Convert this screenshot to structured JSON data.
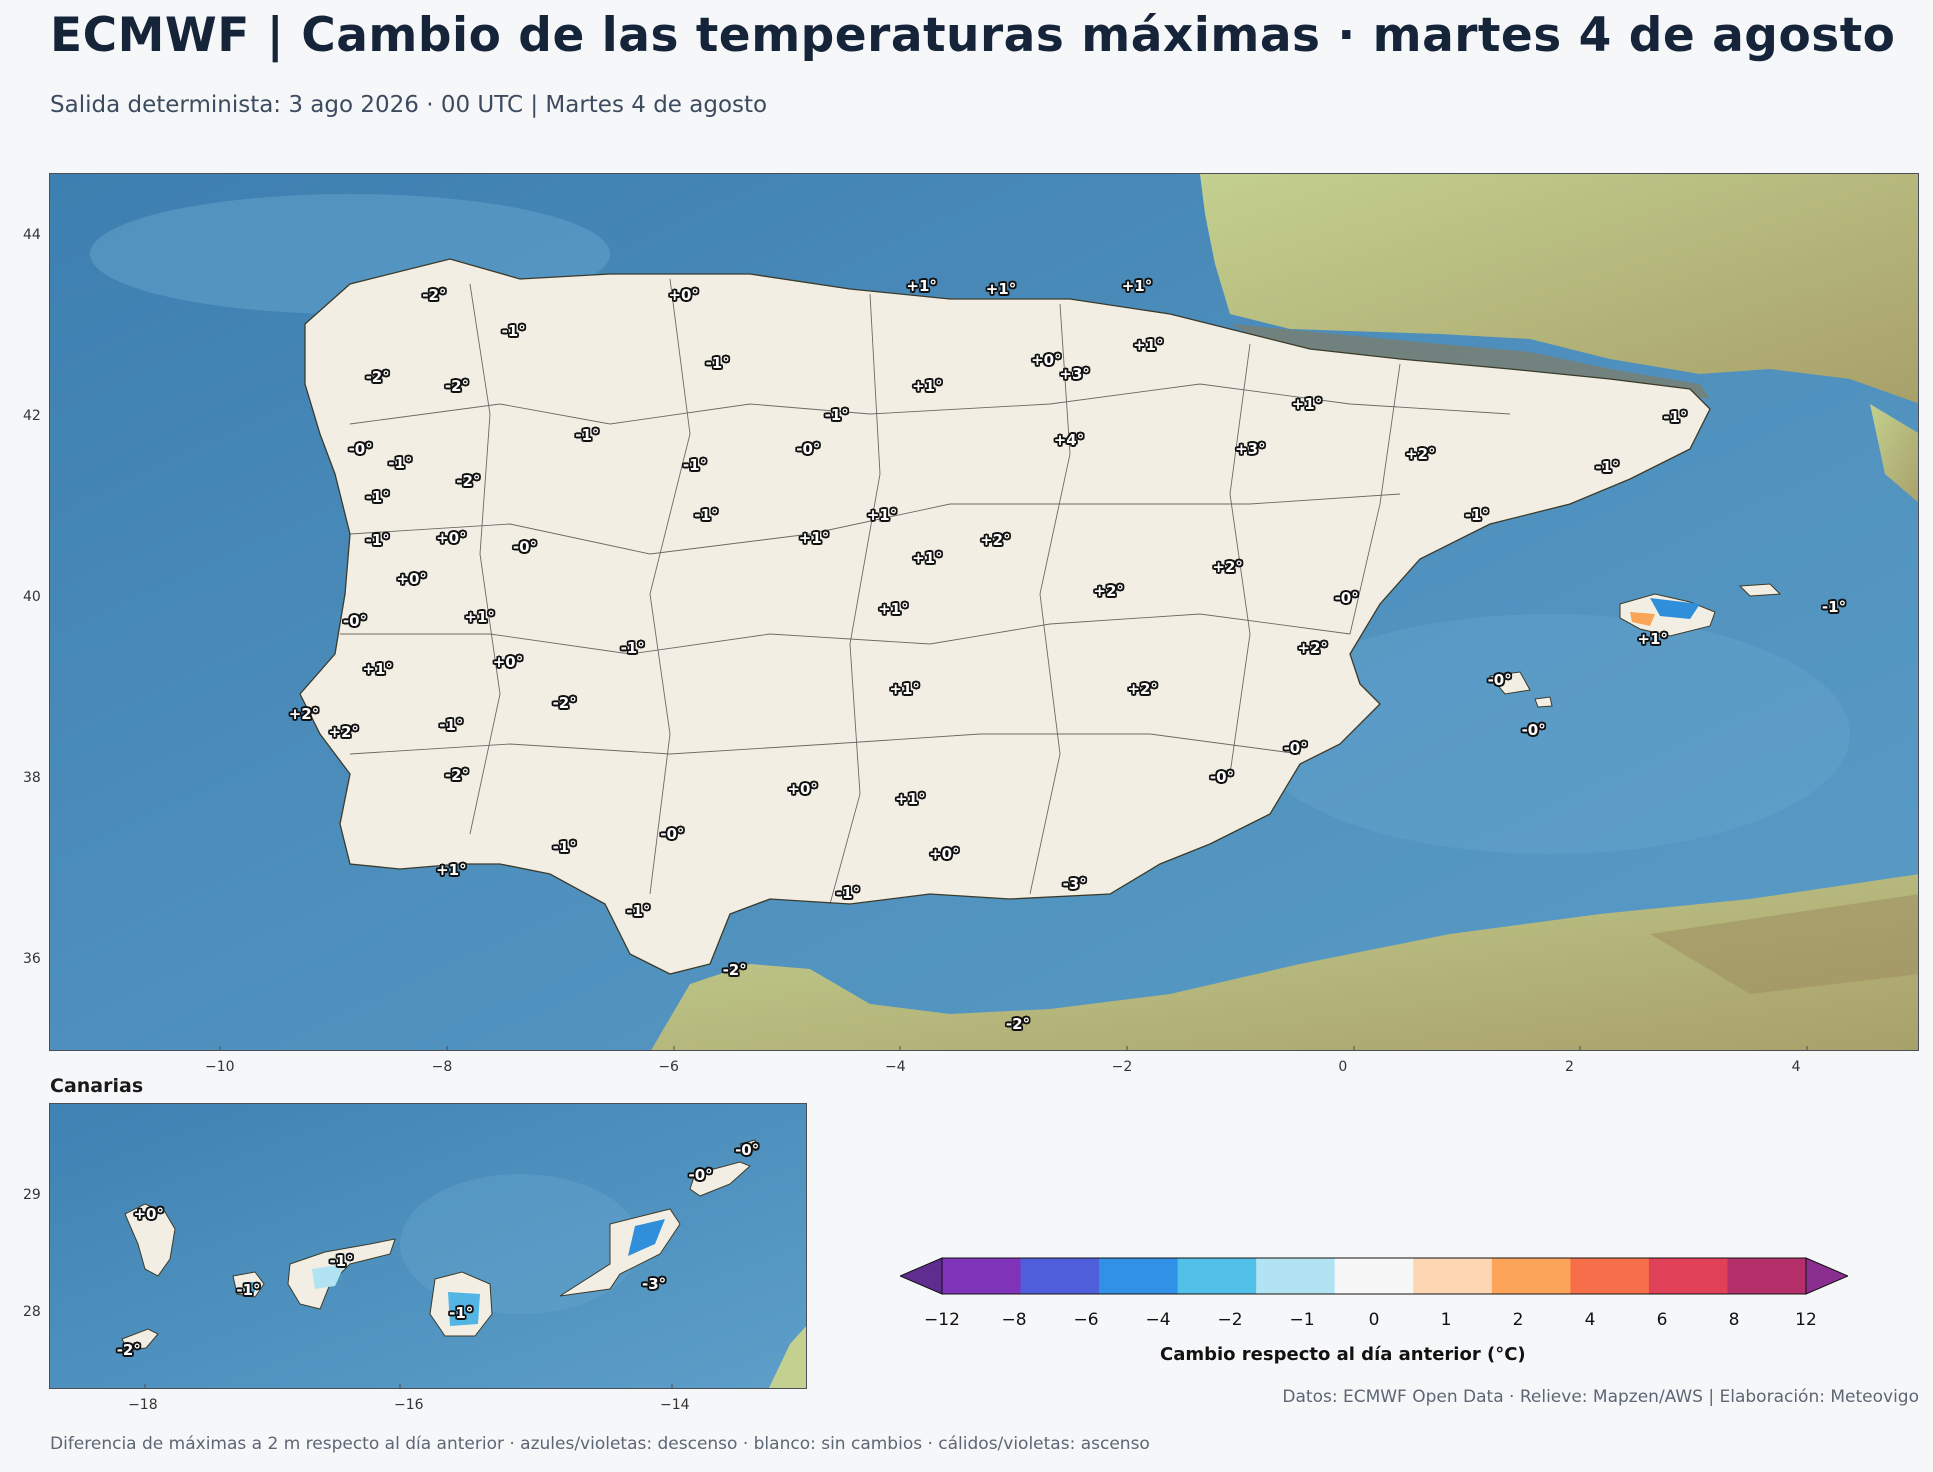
{
  "header": {
    "title": "ECMWF | Cambio de las temperaturas máximas · martes 4 de agosto",
    "subtitle": "Salida determinista: 3 ago 2026 · 00 UTC  |  Martes 4 de agosto"
  },
  "main_map": {
    "lon_range": [
      -11.5,
      5.0
    ],
    "lat_range": [
      35.0,
      44.7
    ],
    "x_ticks": [
      "−10",
      "−8",
      "−6",
      "−4",
      "−2",
      "0",
      "2",
      "4"
    ],
    "x_tick_values": [
      -10,
      -8,
      -6,
      -4,
      -2,
      0,
      2,
      4
    ],
    "y_ticks": [
      "36",
      "38",
      "40",
      "42",
      "44"
    ],
    "y_tick_values": [
      36,
      38,
      40,
      42,
      44
    ],
    "labels": [
      {
        "text": "-2°",
        "lon": -8.1,
        "lat": 43.35
      },
      {
        "text": "+0°",
        "lon": -5.9,
        "lat": 43.35
      },
      {
        "text": "+1°",
        "lon": -3.8,
        "lat": 43.45
      },
      {
        "text": "+1°",
        "lon": -3.1,
        "lat": 43.42
      },
      {
        "text": "+1°",
        "lon": -1.9,
        "lat": 43.45
      },
      {
        "text": "-1°",
        "lon": -7.4,
        "lat": 42.95
      },
      {
        "text": "-1°",
        "lon": -5.6,
        "lat": 42.6
      },
      {
        "text": "+1°",
        "lon": -1.8,
        "lat": 42.8
      },
      {
        "text": "+0°",
        "lon": -2.7,
        "lat": 42.63
      },
      {
        "text": "+3°",
        "lon": -2.45,
        "lat": 42.48
      },
      {
        "text": "-2°",
        "lon": -8.6,
        "lat": 42.45
      },
      {
        "text": "-2°",
        "lon": -7.9,
        "lat": 42.35
      },
      {
        "text": "+1°",
        "lon": -3.75,
        "lat": 42.35
      },
      {
        "text": "+1°",
        "lon": -0.4,
        "lat": 42.15
      },
      {
        "text": "-1°",
        "lon": -4.55,
        "lat": 42.03
      },
      {
        "text": "-1°",
        "lon": 2.85,
        "lat": 42.0
      },
      {
        "text": "-1°",
        "lon": -6.75,
        "lat": 41.8
      },
      {
        "text": "+4°",
        "lon": -2.5,
        "lat": 41.75
      },
      {
        "text": "-0°",
        "lon": -8.75,
        "lat": 41.65
      },
      {
        "text": "-0°",
        "lon": -4.8,
        "lat": 41.65
      },
      {
        "text": "+3°",
        "lon": -0.9,
        "lat": 41.65
      },
      {
        "text": "+2°",
        "lon": 0.6,
        "lat": 41.6
      },
      {
        "text": "-1°",
        "lon": -8.4,
        "lat": 41.5
      },
      {
        "text": "-1°",
        "lon": -5.8,
        "lat": 41.47
      },
      {
        "text": "-1°",
        "lon": 2.25,
        "lat": 41.45
      },
      {
        "text": "-2°",
        "lon": -7.8,
        "lat": 41.3
      },
      {
        "text": "-1°",
        "lon": -8.6,
        "lat": 41.12
      },
      {
        "text": "-1°",
        "lon": -5.7,
        "lat": 40.92
      },
      {
        "text": "+1°",
        "lon": -4.15,
        "lat": 40.92
      },
      {
        "text": "-1°",
        "lon": 1.1,
        "lat": 40.92
      },
      {
        "text": "-1°",
        "lon": -8.6,
        "lat": 40.65
      },
      {
        "text": "+0°",
        "lon": -7.95,
        "lat": 40.67
      },
      {
        "text": "-0°",
        "lon": -7.3,
        "lat": 40.57
      },
      {
        "text": "+1°",
        "lon": -4.75,
        "lat": 40.67
      },
      {
        "text": "+2°",
        "lon": -3.15,
        "lat": 40.65
      },
      {
        "text": "+1°",
        "lon": -3.75,
        "lat": 40.45
      },
      {
        "text": "+2°",
        "lon": -1.1,
        "lat": 40.35
      },
      {
        "text": "+0°",
        "lon": -8.3,
        "lat": 40.22
      },
      {
        "text": "+2°",
        "lon": -2.15,
        "lat": 40.08
      },
      {
        "text": "-0°",
        "lon": -0.05,
        "lat": 40.0
      },
      {
        "text": "+1°",
        "lon": -4.05,
        "lat": 39.88
      },
      {
        "text": "+1°",
        "lon": -7.7,
        "lat": 39.8
      },
      {
        "text": "-0°",
        "lon": -8.8,
        "lat": 39.75
      },
      {
        "text": "-1°",
        "lon": 4.25,
        "lat": 39.9
      },
      {
        "text": "+1°",
        "lon": 2.65,
        "lat": 39.55
      },
      {
        "text": "-1°",
        "lon": -6.35,
        "lat": 39.45
      },
      {
        "text": "+2°",
        "lon": -0.35,
        "lat": 39.45
      },
      {
        "text": "+0°",
        "lon": -7.45,
        "lat": 39.3
      },
      {
        "text": "+1°",
        "lon": -8.6,
        "lat": 39.22
      },
      {
        "text": "-0°",
        "lon": 1.3,
        "lat": 39.1
      },
      {
        "text": "+1°",
        "lon": -3.95,
        "lat": 39.0
      },
      {
        "text": "+2°",
        "lon": -1.85,
        "lat": 39.0
      },
      {
        "text": "-2°",
        "lon": -6.95,
        "lat": 38.85
      },
      {
        "text": "+2°",
        "lon": -9.25,
        "lat": 38.72
      },
      {
        "text": "-1°",
        "lon": -7.95,
        "lat": 38.6
      },
      {
        "text": "+2°",
        "lon": -8.9,
        "lat": 38.52
      },
      {
        "text": "-0°",
        "lon": 1.6,
        "lat": 38.55
      },
      {
        "text": "-0°",
        "lon": -0.5,
        "lat": 38.35
      },
      {
        "text": "-2°",
        "lon": -7.9,
        "lat": 38.05
      },
      {
        "text": "-0°",
        "lon": -1.15,
        "lat": 38.03
      },
      {
        "text": "+0°",
        "lon": -4.85,
        "lat": 37.9
      },
      {
        "text": "+1°",
        "lon": -3.9,
        "lat": 37.78
      },
      {
        "text": "-0°",
        "lon": -6.0,
        "lat": 37.4
      },
      {
        "text": "-1°",
        "lon": -6.95,
        "lat": 37.25
      },
      {
        "text": "+0°",
        "lon": -3.6,
        "lat": 37.18
      },
      {
        "text": "+1°",
        "lon": -7.95,
        "lat": 37.0
      },
      {
        "text": "-3°",
        "lon": -2.45,
        "lat": 36.85
      },
      {
        "text": "-1°",
        "lon": -4.45,
        "lat": 36.75
      },
      {
        "text": "-1°",
        "lon": -6.3,
        "lat": 36.55
      },
      {
        "text": "-2°",
        "lon": -5.45,
        "lat": 35.9
      },
      {
        "text": "-2°",
        "lon": -2.95,
        "lat": 35.3
      }
    ]
  },
  "inset": {
    "title": "Canarias",
    "lon_range": [
      -18.7,
      -13.0
    ],
    "lat_range": [
      27.35,
      29.8
    ],
    "x_ticks": [
      "−18",
      "−16",
      "−14"
    ],
    "x_tick_values": [
      -18,
      -16,
      -14
    ],
    "y_ticks": [
      "28",
      "29"
    ],
    "y_tick_values": [
      28,
      29
    ],
    "labels": [
      {
        "text": "+0°",
        "lon": -17.95,
        "lat": 28.85
      },
      {
        "text": "-1°",
        "lon": -17.2,
        "lat": 28.2
      },
      {
        "text": "-1°",
        "lon": -16.5,
        "lat": 28.45
      },
      {
        "text": "-1°",
        "lon": -15.6,
        "lat": 28.0
      },
      {
        "text": "-3°",
        "lon": -14.15,
        "lat": 28.25
      },
      {
        "text": "-0°",
        "lon": -13.8,
        "lat": 29.18
      },
      {
        "text": "-0°",
        "lon": -13.45,
        "lat": 29.4
      },
      {
        "text": "-2°",
        "lon": -18.1,
        "lat": 27.68
      }
    ]
  },
  "colorbar": {
    "title": "Cambio respecto al día anterior (°C)",
    "ticks": [
      "−12",
      "−8",
      "−6",
      "−4",
      "−2",
      "−1",
      "0",
      "1",
      "2",
      "4",
      "6",
      "8",
      "12"
    ],
    "colors": [
      "#5e2d8f",
      "#7f33b8",
      "#4f5fdc",
      "#3191e6",
      "#52c1ea",
      "#b2e3f2",
      "#f7f7f7",
      "#fdd6b4",
      "#fca55a",
      "#f66e4a",
      "#e04058",
      "#b42e6a",
      "#8a2e8f"
    ]
  },
  "credits": "Datos: ECMWF Open Data · Relieve: Mapzen/AWS  |  Elaboración: Meteovigo",
  "footer": "Diferencia de máximas a 2 m respecto al día anterior · azules/violetas: descenso · blanco: sin cambios · cálidos/violetas: ascenso"
}
